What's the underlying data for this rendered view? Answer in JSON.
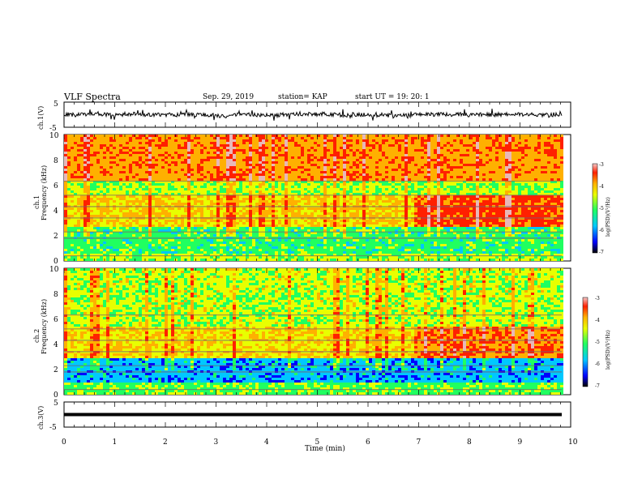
{
  "header": {
    "title": "VLF Spectra",
    "date": "Sep. 29, 2019",
    "station": "station= KAP",
    "start": "start UT =   19: 20: 1"
  },
  "colors": {
    "spectrum": [
      "#3000a0",
      "#0000ff",
      "#00c8ff",
      "#20ff60",
      "#e8ff00",
      "#ffb000",
      "#ff2000",
      "#e8b8b8"
    ]
  },
  "chart_data": [
    {
      "type": "line",
      "name": "ch.1 waveform",
      "ylabel": "ch.1(V)",
      "ylim": [
        -5,
        5
      ],
      "yticks": [
        "5",
        "-5"
      ],
      "xlim": [
        0,
        10
      ],
      "description_values": {
        "mean_level": 0,
        "envelope_min": -1.8,
        "envelope_max": 1.6
      }
    },
    {
      "type": "heatmap",
      "name": "ch.1 spectrogram",
      "ylabel": "ch.1\nFrequency (kHz)",
      "ylim": [
        0,
        10
      ],
      "yticks": [
        "0",
        "2",
        "4",
        "6",
        "8",
        "10"
      ],
      "xlim": [
        0,
        10
      ],
      "colorbar": {
        "label": "log(PSD)(V²/Hz)",
        "range": [
          -7,
          -3
        ],
        "ticks": [
          "-3",
          "-4",
          "-5",
          "-6",
          "-7"
        ]
      }
    },
    {
      "type": "heatmap",
      "name": "ch.2 spectrogram",
      "ylabel": "ch.2\nFrequency (kHz)",
      "ylim": [
        0,
        10
      ],
      "yticks": [
        "0",
        "2",
        "4",
        "6",
        "8",
        "10"
      ],
      "xlim": [
        0,
        10
      ],
      "colorbar": {
        "label": "log(PSD)(V²/Hz)",
        "range": [
          -7,
          -3
        ],
        "ticks": [
          "-3",
          "-4",
          "-5",
          "-6",
          "-7"
        ]
      }
    },
    {
      "type": "line",
      "name": "ch.3 waveform",
      "ylabel": "ch.3(V)",
      "ylim": [
        -5,
        5
      ],
      "yticks": [
        "5",
        "-5"
      ],
      "xlim": [
        0,
        10
      ],
      "description_values": {
        "constant_level": 0
      }
    }
  ],
  "xaxis": {
    "label": "Time (min)",
    "ticks": [
      "0",
      "1",
      "2",
      "3",
      "4",
      "5",
      "6",
      "7",
      "8",
      "9",
      "10"
    ]
  }
}
